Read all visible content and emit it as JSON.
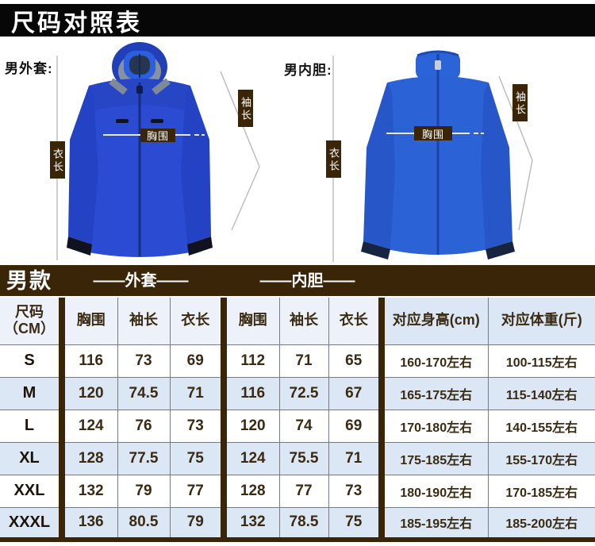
{
  "title_bar": {
    "title": "尺码对照表"
  },
  "products": {
    "left": {
      "label": "男外套:",
      "chest_label": "胸围",
      "sleeve_label": "袖长",
      "length_label": "衣长"
    },
    "right": {
      "label": "男内胆:",
      "chest_label": "胸围",
      "sleeve_label": "袖长",
      "length_label": "衣长"
    }
  },
  "colors": {
    "accent_brown": "#3a2508",
    "outer_jacket_blue": "#2a4bd2",
    "inner_jacket_blue": "#2b62d6",
    "row_alt_blue": "#dbe7f5"
  },
  "table": {
    "group_title": "男款",
    "outer_group_header": "——外套——",
    "inner_group_header": "——内胆——",
    "headers": [
      "尺码\n（CM）",
      "胸围",
      "袖长",
      "衣长",
      "胸围",
      "袖长",
      "衣长",
      "对应身高(cm)",
      "对应体重(斤)"
    ],
    "rows": [
      {
        "cells": [
          "S",
          "116",
          "73",
          "69",
          "112",
          "71",
          "65",
          "160-170左右",
          "100-115左右"
        ]
      },
      {
        "cells": [
          "M",
          "120",
          "74.5",
          "71",
          "116",
          "72.5",
          "67",
          "165-175左右",
          "115-140左右"
        ]
      },
      {
        "cells": [
          "L",
          "124",
          "76",
          "73",
          "120",
          "74",
          "69",
          "170-180左右",
          "140-155左右"
        ]
      },
      {
        "cells": [
          "XL",
          "128",
          "77.5",
          "75",
          "124",
          "75.5",
          "71",
          "175-185左右",
          "155-170左右"
        ]
      },
      {
        "cells": [
          "XXL",
          "132",
          "79",
          "77",
          "128",
          "77",
          "73",
          "180-190左右",
          "170-185左右"
        ]
      },
      {
        "cells": [
          "XXXL",
          "136",
          "80.5",
          "79",
          "132",
          "78.5",
          "75",
          "185-195左右",
          "185-200左右"
        ]
      }
    ]
  }
}
